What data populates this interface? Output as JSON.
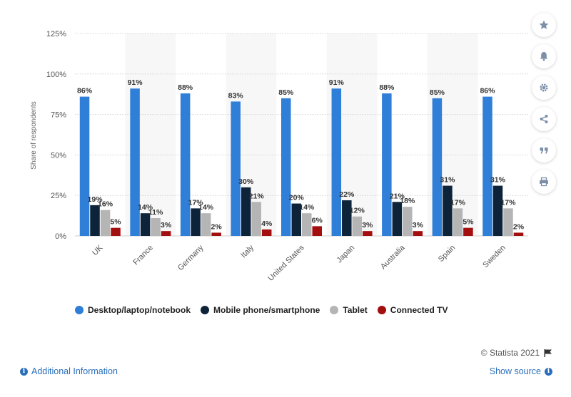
{
  "chart_data": {
    "type": "bar",
    "title": "",
    "xlabel": "",
    "ylabel": "Share of respondents",
    "ylim": [
      0,
      125
    ],
    "yticks": [
      "0%",
      "25%",
      "50%",
      "75%",
      "100%",
      "125%"
    ],
    "ytick_values": [
      0,
      25,
      50,
      75,
      100,
      125
    ],
    "grid": true,
    "legend_position": "bottom",
    "categories": [
      "UK",
      "France",
      "Germany",
      "Italy",
      "United States",
      "Japan",
      "Australia",
      "Spain",
      "Sweden"
    ],
    "series": [
      {
        "name": "Desktop/laptop/notebook",
        "color": "#2f7ed8",
        "values": [
          86,
          91,
          88,
          83,
          85,
          91,
          88,
          85,
          86
        ]
      },
      {
        "name": "Mobile phone/smartphone",
        "color": "#0d233a",
        "values": [
          19,
          14,
          17,
          30,
          20,
          22,
          21,
          31,
          31
        ]
      },
      {
        "name": "Tablet",
        "color": "#b5b5b5",
        "values": [
          16,
          11,
          14,
          21,
          14,
          12,
          18,
          17,
          17
        ]
      },
      {
        "name": "Connected TV",
        "color": "#a30e0e",
        "values": [
          5,
          3,
          2,
          4,
          6,
          3,
          3,
          5,
          2
        ]
      }
    ]
  },
  "tools": {
    "icons": [
      "star-icon",
      "bell-icon",
      "gear-icon",
      "share-icon",
      "quote-icon",
      "print-icon"
    ]
  },
  "footer": {
    "credit": "© Statista 2021",
    "additional_info": "Additional Information",
    "show_source": "Show source"
  }
}
